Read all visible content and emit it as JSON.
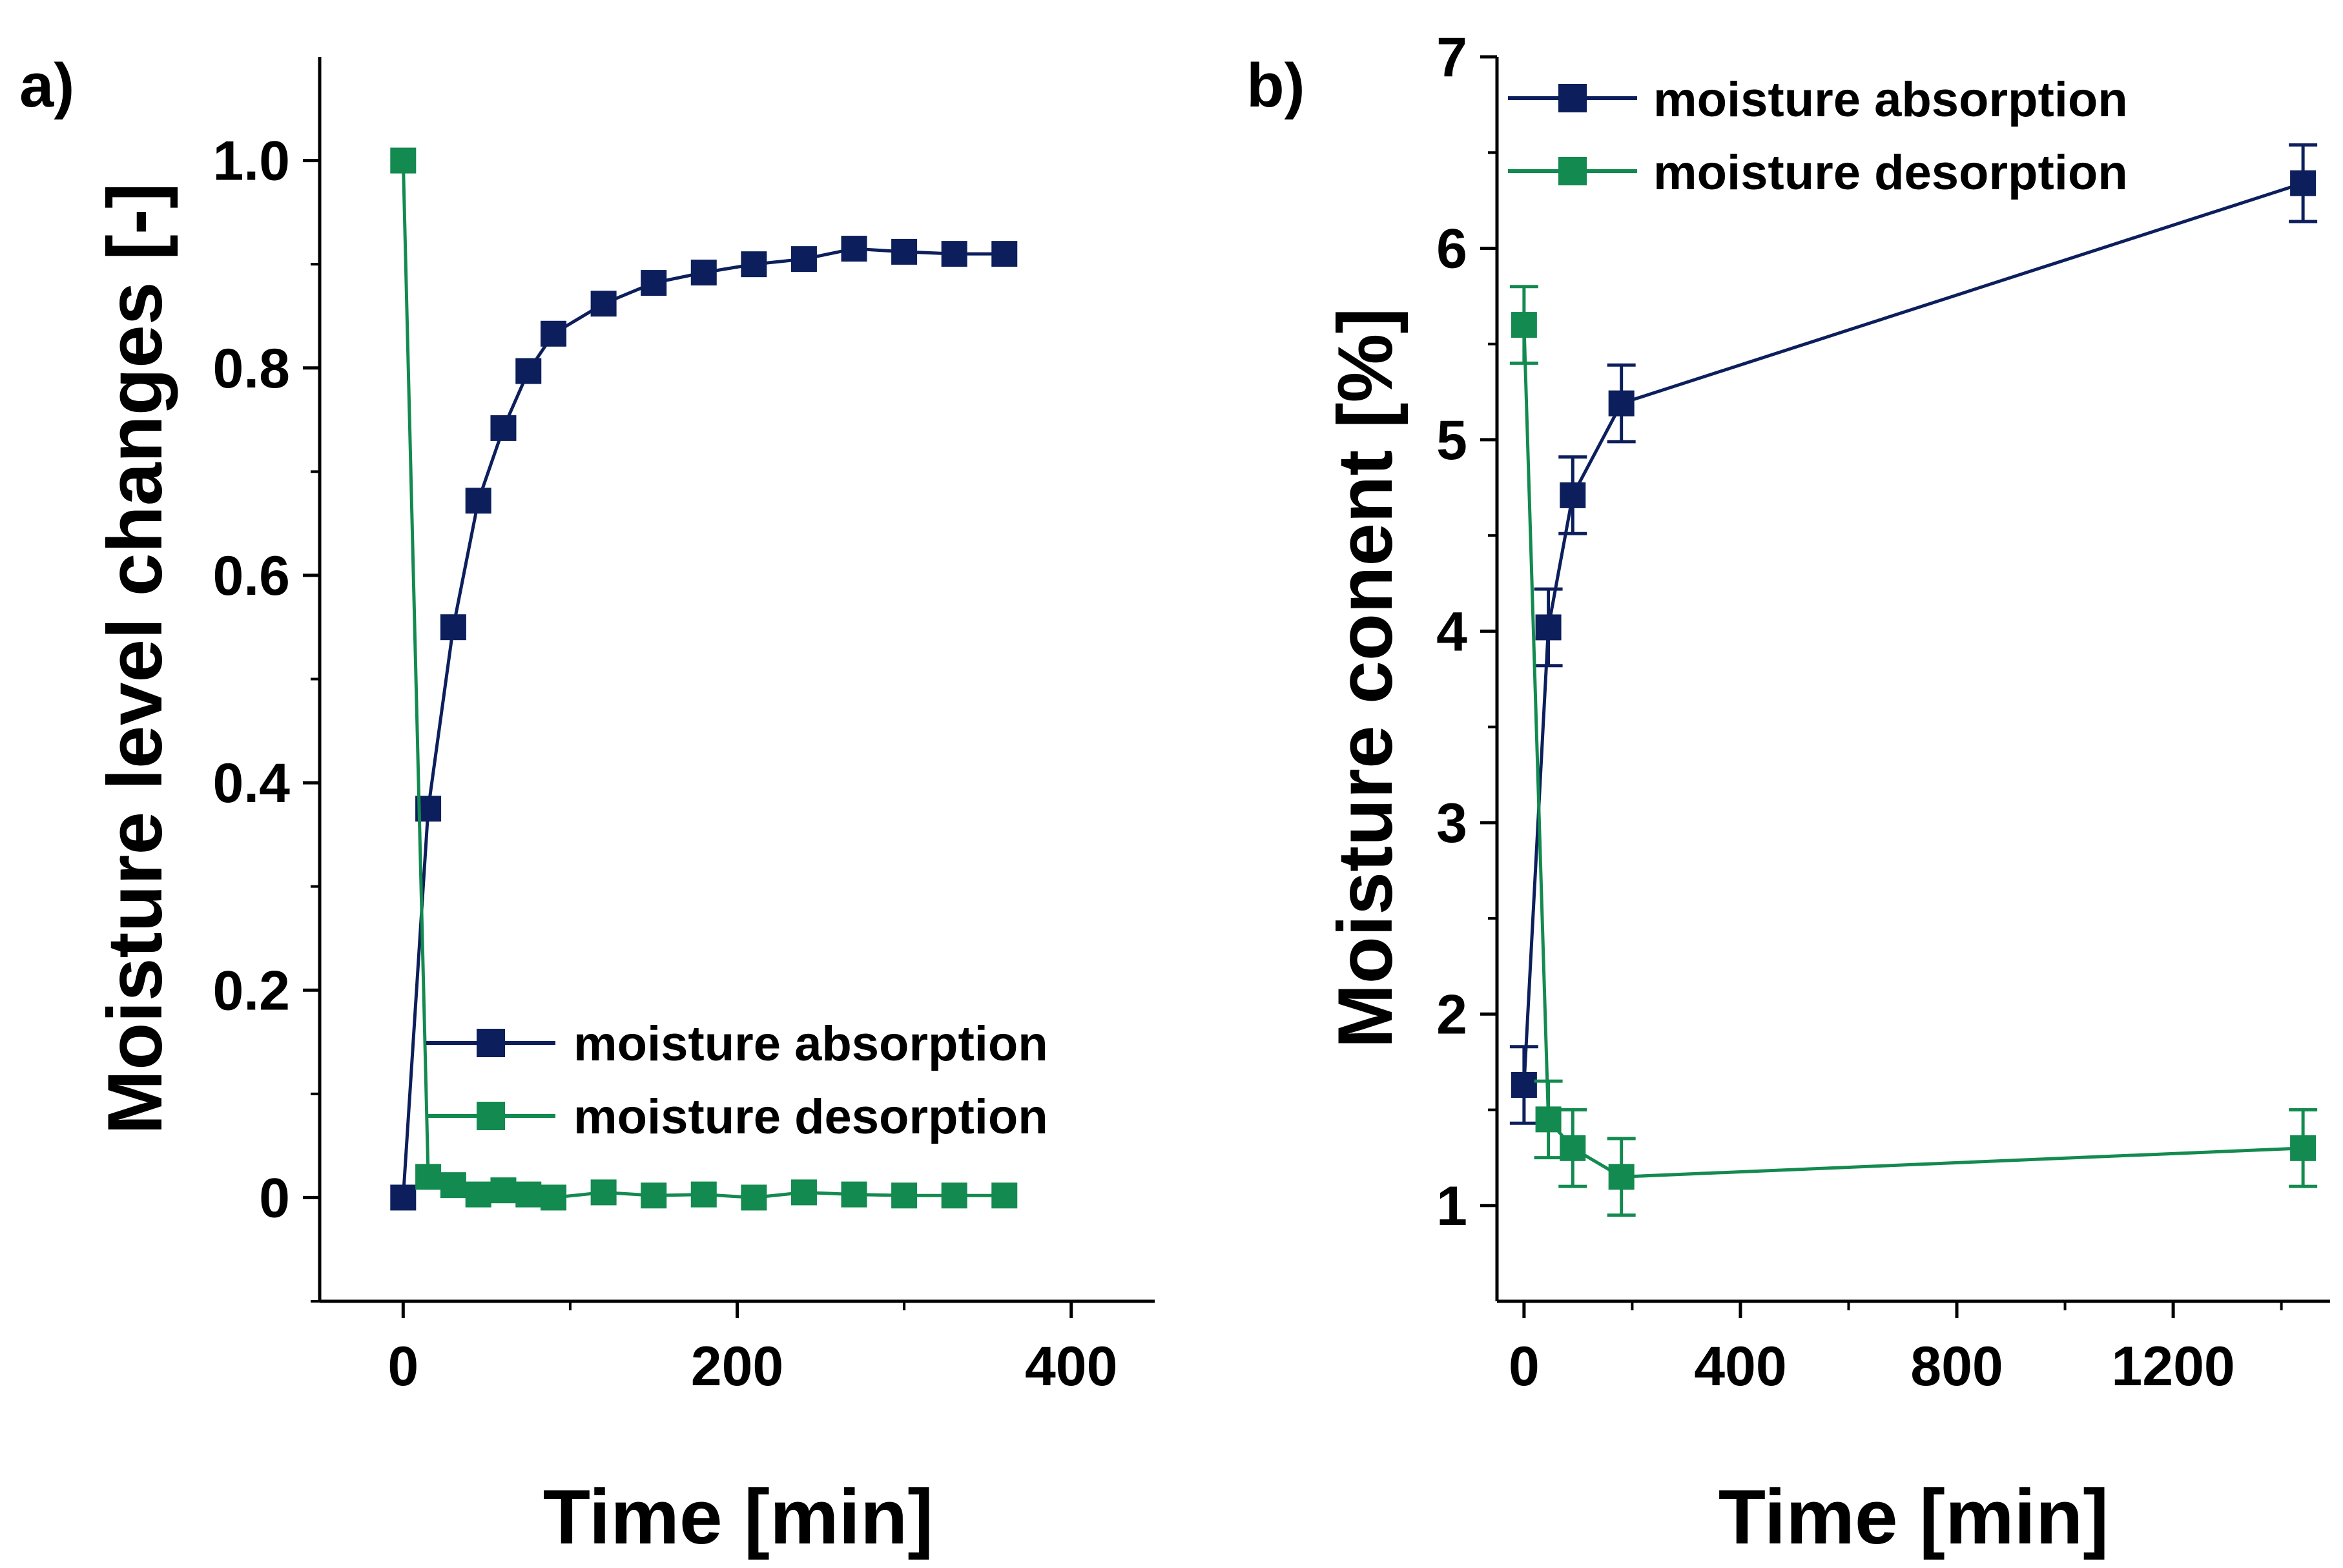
{
  "colors": {
    "absorption": "#0c1f5c",
    "desorption": "#138a4f",
    "axis": "#000000",
    "background": "#ffffff"
  },
  "chart_data": [
    {
      "panel_label": "a)",
      "type": "line",
      "xlabel": "Time [min]",
      "ylabel": "Moisture level changes [-]",
      "xlim": [
        -50,
        450
      ],
      "ylim": [
        -0.1,
        1.1
      ],
      "x_ticks": [
        0,
        200,
        400
      ],
      "x_tick_labels": [
        "0",
        "200",
        "400"
      ],
      "x_minor_ticks": [
        100,
        300
      ],
      "y_ticks": [
        0,
        0.2,
        0.4,
        0.6,
        0.8,
        1.0
      ],
      "y_tick_labels": [
        "0",
        "0.2",
        "0.4",
        "0.6",
        "0.8",
        "1.0"
      ],
      "y_minor_ticks": [
        -0.1,
        0.1,
        0.3,
        0.5,
        0.7,
        0.9
      ],
      "legend_position": "bottom-right",
      "series": [
        {
          "name": "moisture absorption",
          "x": [
            0,
            15,
            30,
            45,
            60,
            75,
            90,
            120,
            150,
            180,
            210,
            240,
            270,
            300,
            330,
            360
          ],
          "y": [
            0,
            0.375,
            0.55,
            0.672,
            0.742,
            0.797,
            0.833,
            0.862,
            0.882,
            0.892,
            0.9,
            0.905,
            0.915,
            0.912,
            0.91,
            0.91
          ]
        },
        {
          "name": "moisture desorption",
          "x": [
            0,
            15,
            30,
            45,
            60,
            75,
            90,
            120,
            150,
            180,
            210,
            240,
            270,
            300,
            330,
            360
          ],
          "y": [
            1.0,
            0.02,
            0.012,
            0.003,
            0.007,
            0.003,
            0.0,
            0.005,
            0.002,
            0.003,
            0.0,
            0.005,
            0.003,
            0.002,
            0.002,
            0.002
          ]
        }
      ]
    },
    {
      "panel_label": "b)",
      "type": "line",
      "xlabel": "Time [min]",
      "ylabel": "Moisture conent [%]",
      "xlim": [
        -50,
        1490
      ],
      "ylim": [
        0.5,
        7
      ],
      "x_ticks": [
        0,
        400,
        800,
        1200
      ],
      "x_tick_labels": [
        "0",
        "400",
        "800",
        "1200"
      ],
      "x_minor_ticks": [
        200,
        600,
        1000,
        1400
      ],
      "y_ticks": [
        1,
        2,
        3,
        4,
        5,
        6,
        7
      ],
      "y_tick_labels": [
        "1",
        "2",
        "3",
        "4",
        "5",
        "6",
        "7"
      ],
      "y_minor_ticks": [
        1.5,
        2.5,
        3.5,
        4.5,
        5.5,
        6.5
      ],
      "legend_position": "top-right",
      "series": [
        {
          "name": "moisture absorption",
          "x": [
            0,
            45,
            90,
            180,
            1440
          ],
          "y": [
            1.63,
            4.02,
            4.71,
            5.19,
            6.34
          ],
          "error": [
            0.2,
            0.2,
            0.2,
            0.2,
            0.2
          ]
        },
        {
          "name": "moisture desorption",
          "x": [
            0,
            45,
            90,
            180,
            1440
          ],
          "y": [
            5.6,
            1.45,
            1.3,
            1.15,
            1.3
          ],
          "error": [
            0.2,
            0.2,
            0.2,
            0.2,
            0.2
          ]
        }
      ]
    }
  ]
}
